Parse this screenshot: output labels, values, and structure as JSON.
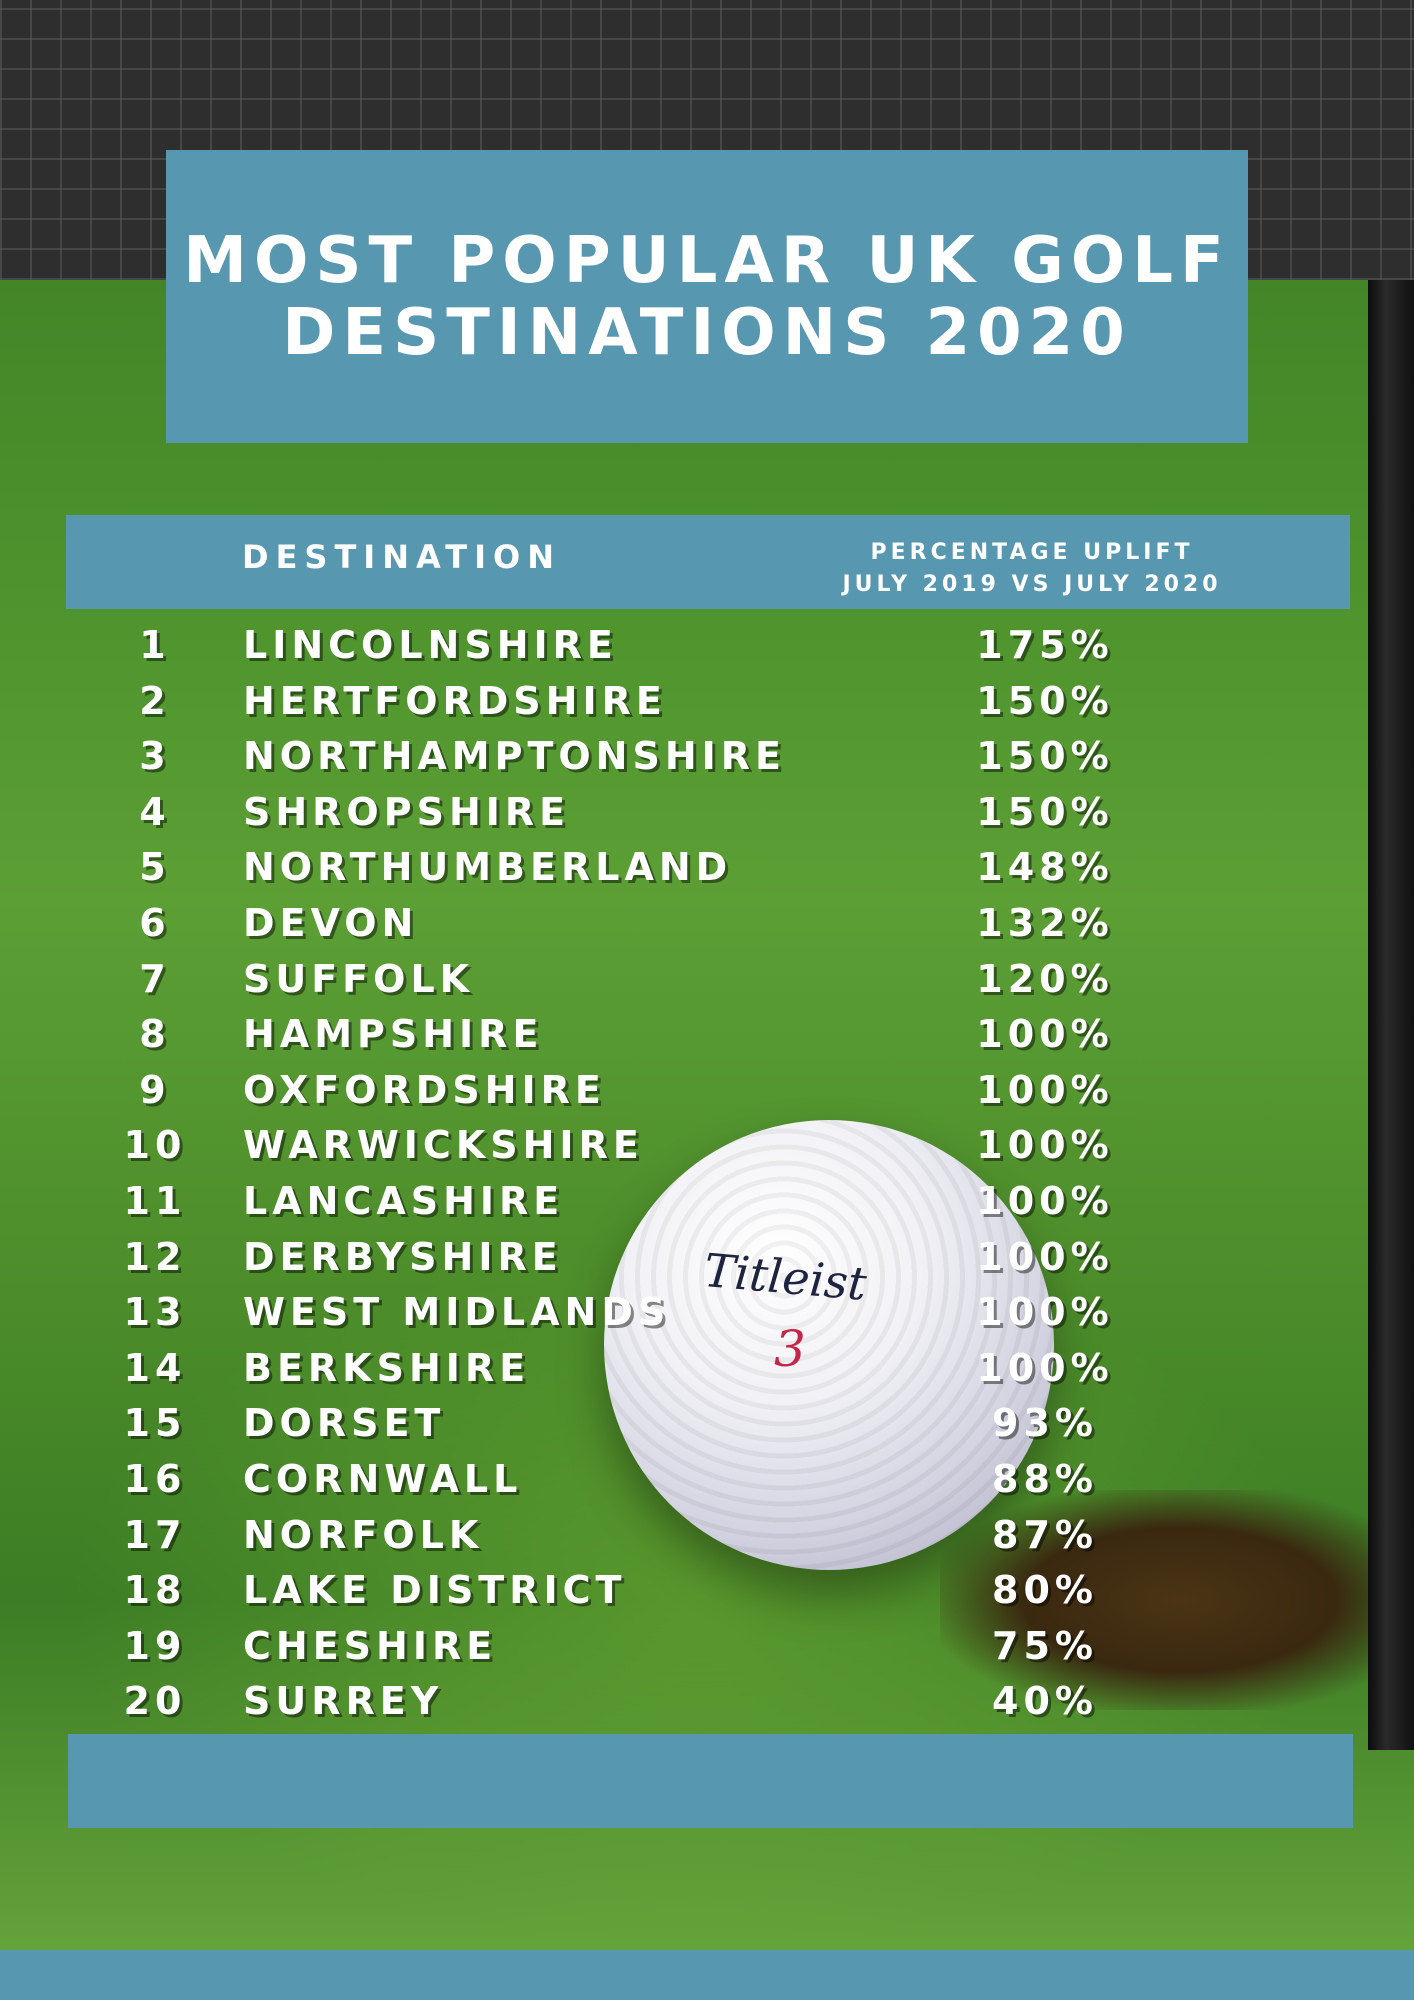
{
  "title": "MOST POPULAR UK GOLF DESTINATIONS 2020",
  "header": {
    "destination_label": "DESTINATION",
    "uplift_line1": "PERCENTAGE UPLIFT",
    "uplift_line2": "JULY 2019 VS JULY 2020"
  },
  "ball": {
    "brand": "Titleist",
    "number": "3"
  },
  "colors": {
    "accent": "#5797b0",
    "text": "#ffffff",
    "net": "#2e2e2e",
    "grass": "#4a8f2b"
  },
  "rows": [
    {
      "rank": "1",
      "destination": "LINCOLNSHIRE",
      "uplift": "175%"
    },
    {
      "rank": "2",
      "destination": "HERTFORDSHIRE",
      "uplift": "150%"
    },
    {
      "rank": "3",
      "destination": "NORTHAMPTONSHIRE",
      "uplift": "150%"
    },
    {
      "rank": "4",
      "destination": "SHROPSHIRE",
      "uplift": "150%"
    },
    {
      "rank": "5",
      "destination": "NORTHUMBERLAND",
      "uplift": "148%"
    },
    {
      "rank": "6",
      "destination": "DEVON",
      "uplift": "132%"
    },
    {
      "rank": "7",
      "destination": "SUFFOLK",
      "uplift": "120%"
    },
    {
      "rank": "8",
      "destination": "HAMPSHIRE",
      "uplift": "100%"
    },
    {
      "rank": "9",
      "destination": "OXFORDSHIRE",
      "uplift": "100%"
    },
    {
      "rank": "10",
      "destination": "WARWICKSHIRE",
      "uplift": "100%"
    },
    {
      "rank": "11",
      "destination": "LANCASHIRE",
      "uplift": "100%"
    },
    {
      "rank": "12",
      "destination": "DERBYSHIRE",
      "uplift": "100%"
    },
    {
      "rank": "13",
      "destination": "WEST MIDLANDS",
      "uplift": "100%"
    },
    {
      "rank": "14",
      "destination": "BERKSHIRE",
      "uplift": "100%"
    },
    {
      "rank": "15",
      "destination": "DORSET",
      "uplift": "93%"
    },
    {
      "rank": "16",
      "destination": "CORNWALL",
      "uplift": "88%"
    },
    {
      "rank": "17",
      "destination": "NORFOLK",
      "uplift": "87%"
    },
    {
      "rank": "18",
      "destination": "LAKE DISTRICT",
      "uplift": "80%"
    },
    {
      "rank": "19",
      "destination": "CHESHIRE",
      "uplift": "75%"
    },
    {
      "rank": "20",
      "destination": "SURREY",
      "uplift": "40%"
    }
  ]
}
